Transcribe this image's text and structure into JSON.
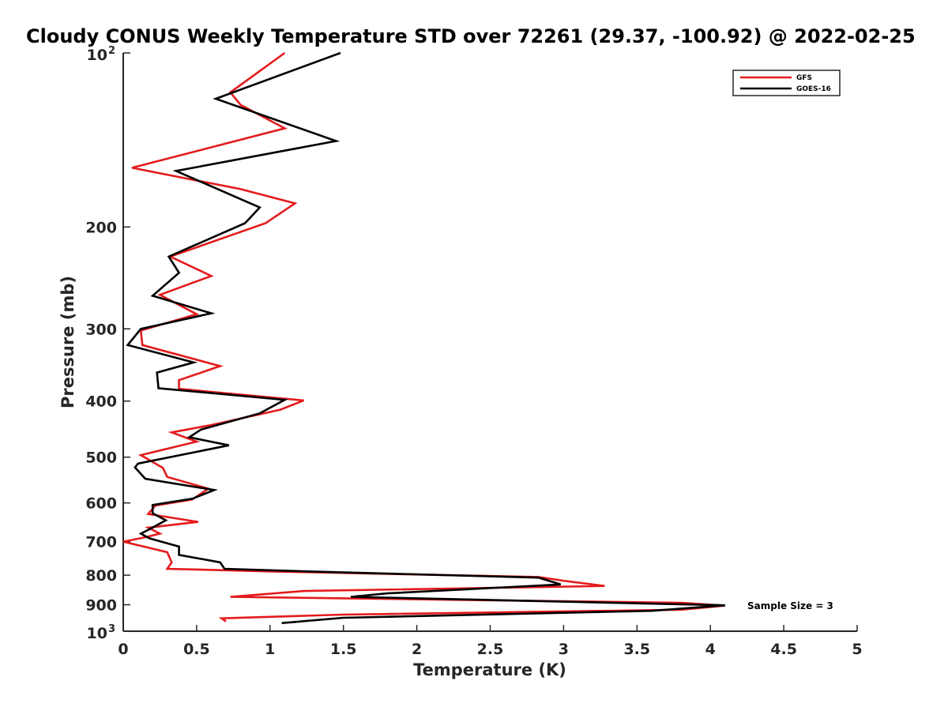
{
  "chart_data": {
    "type": "line",
    "title": "Cloudy CONUS Weekly Temperature STD over 72261 (29.37, -100.92) @ 2022-02-25",
    "xlabel": "Temperature (K)",
    "ylabel": "Pressure (mb)",
    "xlim": [
      0,
      5
    ],
    "ylim": [
      100,
      1000
    ],
    "yscale": "log",
    "y_reversed": true,
    "x_ticks": [
      "0",
      "0.5",
      "1",
      "1.5",
      "2",
      "2.5",
      "3",
      "3.5",
      "4",
      "4.5",
      "5"
    ],
    "y_ticks": [
      {
        "value": 100,
        "base": "10",
        "exp": "2"
      },
      {
        "value": 200,
        "label": "200"
      },
      {
        "value": 300,
        "label": "300"
      },
      {
        "value": 400,
        "label": "400"
      },
      {
        "value": 500,
        "label": "500"
      },
      {
        "value": 600,
        "label": "600"
      },
      {
        "value": 700,
        "label": "700"
      },
      {
        "value": 800,
        "label": "800"
      },
      {
        "value": 900,
        "label": "900"
      },
      {
        "value": 1000,
        "base": "10",
        "exp": "3"
      }
    ],
    "grid": false,
    "legend_position": "top-right",
    "annotation": "Sample Size = 3",
    "series": [
      {
        "name": "GFS",
        "color": "#e41a1c",
        "points": [
          [
            1.1,
            100
          ],
          [
            0.73,
            117
          ],
          [
            0.8,
            123
          ],
          [
            1.1,
            135
          ],
          [
            0.06,
            158
          ],
          [
            0.8,
            172
          ],
          [
            1.17,
            182
          ],
          [
            0.97,
            197
          ],
          [
            0.32,
            225
          ],
          [
            0.6,
            243
          ],
          [
            0.25,
            262
          ],
          [
            0.5,
            283
          ],
          [
            0.12,
            302
          ],
          [
            0.13,
            320
          ],
          [
            0.66,
            348
          ],
          [
            0.38,
            368
          ],
          [
            0.38,
            381
          ],
          [
            1.23,
            399
          ],
          [
            1.07,
            414
          ],
          [
            0.6,
            440
          ],
          [
            0.33,
            453
          ],
          [
            0.5,
            470
          ],
          [
            0.12,
            496
          ],
          [
            0.27,
            522
          ],
          [
            0.3,
            541
          ],
          [
            0.58,
            567
          ],
          [
            0.47,
            592
          ],
          [
            0.22,
            606
          ],
          [
            0.17,
            627
          ],
          [
            0.51,
            647
          ],
          [
            0.17,
            662
          ],
          [
            0.25,
            678
          ],
          [
            0.15,
            688
          ],
          [
            0.0,
            700
          ],
          [
            0.3,
            730
          ],
          [
            0.33,
            760
          ],
          [
            0.3,
            780
          ],
          [
            1.0,
            788
          ],
          [
            2.83,
            806
          ],
          [
            3.0,
            818
          ],
          [
            3.28,
            835
          ],
          [
            1.23,
            852
          ],
          [
            0.73,
            872
          ],
          [
            3.8,
            893
          ],
          [
            4.1,
            903
          ],
          [
            3.8,
            918
          ],
          [
            1.5,
            936
          ],
          [
            0.67,
            950
          ],
          [
            0.7,
            962
          ]
        ]
      },
      {
        "name": "GOES-16",
        "color": "#000000",
        "points": [
          [
            1.48,
            100
          ],
          [
            0.63,
            120
          ],
          [
            1.45,
            142
          ],
          [
            0.36,
            160
          ],
          [
            0.93,
            185
          ],
          [
            0.83,
            197
          ],
          [
            0.31,
            225
          ],
          [
            0.38,
            240
          ],
          [
            0.2,
            263
          ],
          [
            0.6,
            282
          ],
          [
            0.12,
            300
          ],
          [
            0.03,
            320
          ],
          [
            0.48,
            343
          ],
          [
            0.23,
            357
          ],
          [
            0.24,
            380
          ],
          [
            1.1,
            398
          ],
          [
            0.93,
            420
          ],
          [
            0.53,
            448
          ],
          [
            0.45,
            462
          ],
          [
            0.72,
            477
          ],
          [
            0.1,
            513
          ],
          [
            0.08,
            521
          ],
          [
            0.15,
            545
          ],
          [
            0.62,
            570
          ],
          [
            0.47,
            590
          ],
          [
            0.2,
            605
          ],
          [
            0.2,
            625
          ],
          [
            0.29,
            643
          ],
          [
            0.19,
            664
          ],
          [
            0.12,
            678
          ],
          [
            0.18,
            691
          ],
          [
            0.38,
            714
          ],
          [
            0.38,
            738
          ],
          [
            0.66,
            760
          ],
          [
            0.69,
            780
          ],
          [
            1.26,
            788
          ],
          [
            2.83,
            808
          ],
          [
            2.98,
            830
          ],
          [
            1.8,
            860
          ],
          [
            1.55,
            872
          ],
          [
            4.1,
            902
          ],
          [
            3.6,
            922
          ],
          [
            1.5,
            948
          ],
          [
            1.08,
            968
          ]
        ]
      }
    ]
  }
}
